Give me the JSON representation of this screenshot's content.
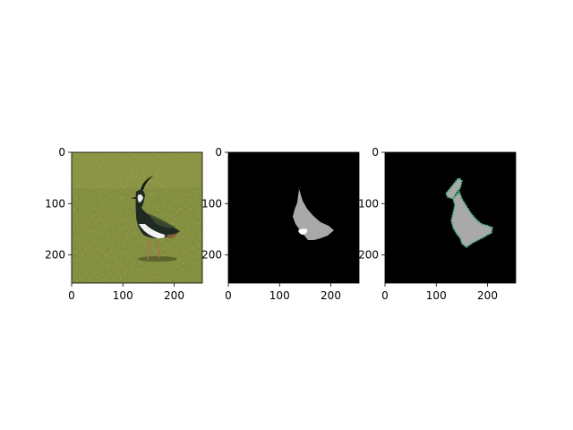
{
  "chart_data": [
    {
      "type": "image",
      "content": "photo of a lapwing bird standing in green grass",
      "xlim": [
        0,
        255
      ],
      "ylim": [
        255,
        0
      ],
      "xticks": [
        0,
        100,
        200
      ],
      "yticks": [
        0,
        100,
        200
      ],
      "xlabel": "",
      "ylabel": "",
      "title": "",
      "colors": {
        "grass": "#7f8a3a",
        "grass_dark": "#5f6a2a",
        "bird_dark": "#1e2a22",
        "bird_white": "#f2f2f0"
      }
    },
    {
      "type": "image",
      "content": "segmentation mask: gray bird silhouette with small white patch on black background",
      "xlim": [
        0,
        255
      ],
      "ylim": [
        255,
        0
      ],
      "xticks": [
        0,
        100,
        200
      ],
      "yticks": [
        0,
        100,
        200
      ],
      "xlabel": "",
      "ylabel": "",
      "title": "",
      "colors": {
        "background": "#000000",
        "mask": "#a9a9a9",
        "patch": "#ffffff"
      }
    },
    {
      "type": "image",
      "content": "predicted mask: gray bird silhouette with green contour on black background",
      "xlim": [
        0,
        255
      ],
      "ylim": [
        255,
        0
      ],
      "xticks": [
        0,
        100,
        200
      ],
      "yticks": [
        0,
        100,
        200
      ],
      "xlabel": "",
      "ylabel": "",
      "title": "",
      "colors": {
        "background": "#000000",
        "mask": "#a9a9a9",
        "contour": "#3fae7a"
      }
    }
  ]
}
